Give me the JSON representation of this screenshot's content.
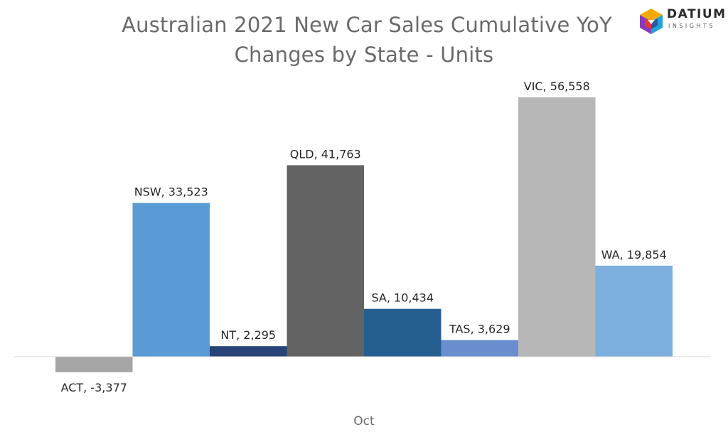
{
  "logo": {
    "word": "DATIUM",
    "sub": "INSIGHTS",
    "icon": "datium-cube-icon",
    "colors": [
      "#f2a900",
      "#1fa3d8",
      "#8a3ab9",
      "#e53935",
      "#2f56a6"
    ]
  },
  "chart_data": {
    "type": "bar",
    "title_line1": "Australian 2021 New Car Sales Cumulative YoY",
    "title_line2": "Changes by State - Units",
    "xlabel": "Oct",
    "ylabel": "",
    "grid": false,
    "legend": "none",
    "ylim": [
      -3377,
      56558
    ],
    "categories": [
      "ACT",
      "NSW",
      "NT",
      "QLD",
      "SA",
      "TAS",
      "VIC",
      "WA"
    ],
    "values": [
      -3377,
      33523,
      2295,
      41763,
      10434,
      3629,
      56558,
      19854
    ],
    "data_labels": [
      "ACT, -3,377",
      "NSW, 33,523",
      "NT, 2,295",
      "QLD, 41,763",
      "SA, 10,434",
      "TAS, 3,629",
      "VIC, 56,558",
      "WA, 19,854"
    ],
    "colors": [
      "#a5a5a5",
      "#5b9bd5",
      "#264478",
      "#636363",
      "#255e91",
      "#698ed0",
      "#b7b7b7",
      "#7cafdd"
    ]
  }
}
